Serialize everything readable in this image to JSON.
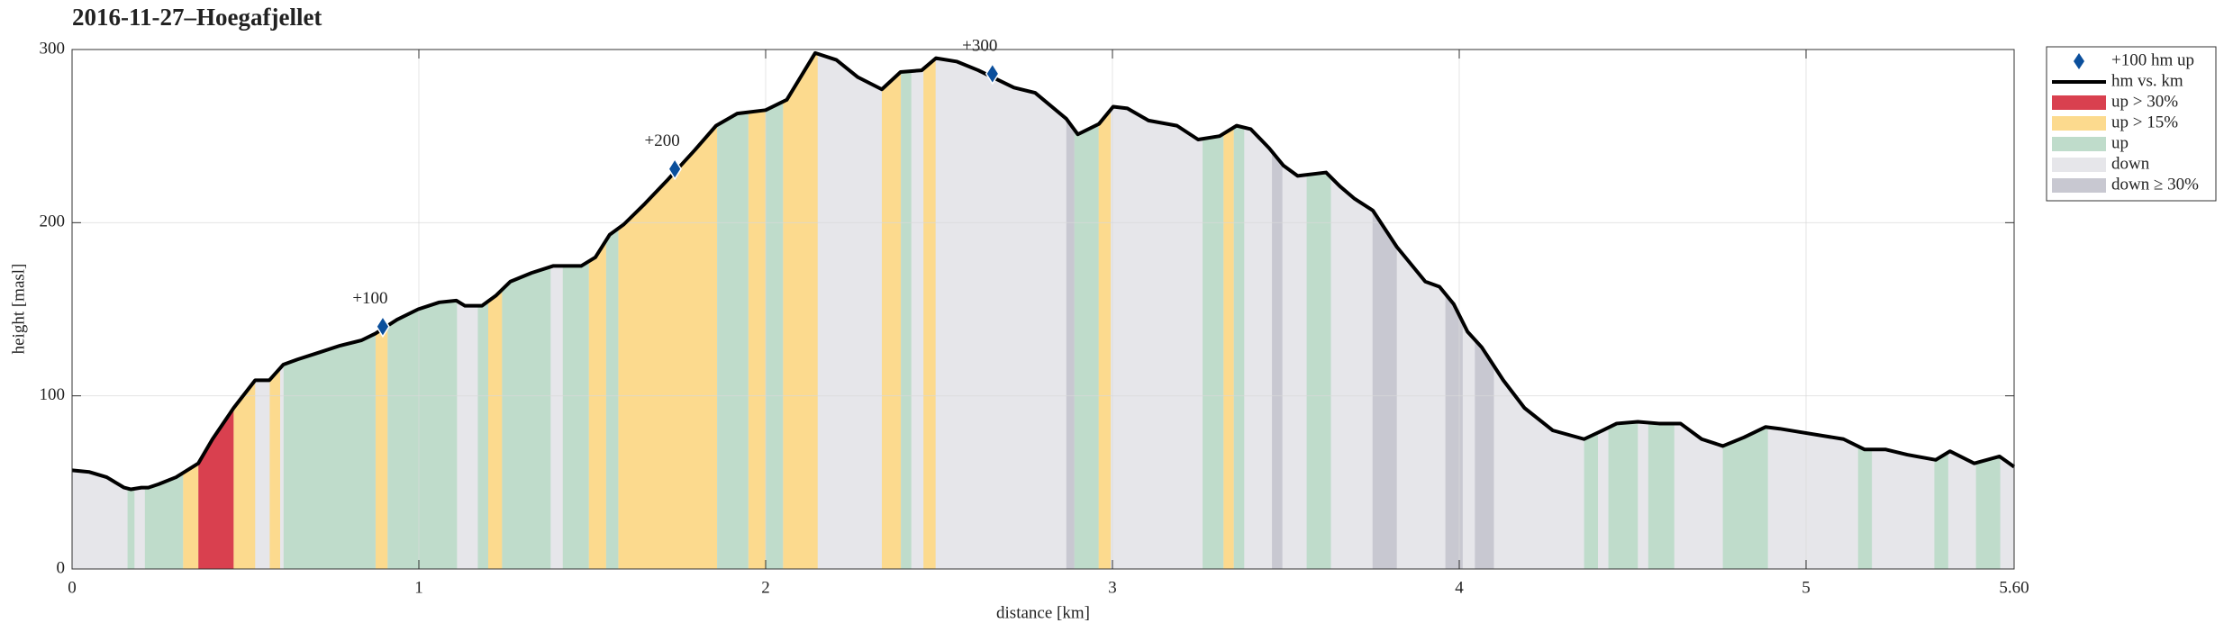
{
  "chart_data": {
    "type": "line",
    "title": "2016-11-27–Hoegafjellet",
    "xlabel": "distance [km]",
    "ylabel": "height [masl]",
    "xlim": [
      0,
      5.6
    ],
    "ylim": [
      0,
      300
    ],
    "xticks": [
      0,
      1,
      2,
      3,
      4,
      5,
      {
        "value": 5.6,
        "label": "5.60"
      }
    ],
    "yticks": [
      0,
      100,
      200,
      300
    ],
    "grid": true,
    "legend": "right",
    "series": [
      {
        "name": "hm vs. km",
        "color": "#000000",
        "x": [
          0,
          0.05,
          0.1,
          0.15,
          0.17,
          0.2,
          0.22,
          0.25,
          0.3,
          0.364,
          0.405,
          0.466,
          0.528,
          0.569,
          0.609,
          0.65,
          0.712,
          0.773,
          0.834,
          0.875,
          0.937,
          0.998,
          1.059,
          1.108,
          1.133,
          1.182,
          1.223,
          1.264,
          1.325,
          1.387,
          1.427,
          1.468,
          1.509,
          1.55,
          1.591,
          1.652,
          1.714,
          1.796,
          1.857,
          1.918,
          2.0,
          2.061,
          2.143,
          2.204,
          2.266,
          2.335,
          2.389,
          2.45,
          2.491,
          2.552,
          2.613,
          2.716,
          2.777,
          2.867,
          2.9,
          2.961,
          3.002,
          3.043,
          3.104,
          3.186,
          3.247,
          3.309,
          3.358,
          3.399,
          3.452,
          3.493,
          3.534,
          3.616,
          3.656,
          3.697,
          3.751,
          3.82,
          3.902,
          3.943,
          3.984,
          4.024,
          4.065,
          4.127,
          4.188,
          4.27,
          4.36,
          4.413,
          4.454,
          4.515,
          4.576,
          4.638,
          4.699,
          4.76,
          4.821,
          4.883,
          4.924,
          4.985,
          5.108,
          5.169,
          5.23,
          5.292,
          5.374,
          5.415,
          5.485,
          5.558,
          5.6
        ],
        "values": [
          57,
          56,
          53,
          47,
          46,
          47,
          47,
          49,
          53,
          61,
          75,
          93,
          109,
          109,
          118,
          121,
          125,
          129,
          132,
          136,
          144,
          150,
          154,
          155,
          152,
          152,
          158,
          166,
          171,
          175,
          175,
          175,
          180,
          193,
          199,
          211,
          224,
          242,
          256,
          263,
          265,
          271,
          298,
          294,
          284,
          277,
          287,
          288,
          295,
          293,
          288,
          278,
          275,
          260,
          251,
          257,
          267,
          266,
          259,
          256,
          248,
          250,
          256,
          254,
          243,
          233,
          227,
          229,
          221,
          214,
          207,
          186,
          166,
          163,
          153,
          137,
          128,
          109,
          93,
          80,
          75,
          80,
          84,
          85,
          84,
          84,
          75,
          71,
          76,
          82,
          81,
          79,
          75,
          69,
          69,
          66,
          63,
          68,
          61,
          65,
          59
        ]
      }
    ],
    "markers": {
      "name": "+100 hm up",
      "color": "#0b4f9c",
      "x": [
        0.896,
        1.738,
        2.654
      ],
      "values": [
        140,
        231,
        286
      ],
      "labels": [
        "+100",
        "+200",
        "+300"
      ]
    },
    "classes": [
      {
        "name": "up > 30%",
        "color": "#d9404f",
        "ranges": [
          [
            0.364,
            0.466
          ]
        ]
      },
      {
        "name": "up > 15%",
        "color": "#fcda8e",
        "ranges": [
          [
            0.32,
            0.364
          ],
          [
            0.466,
            0.528
          ],
          [
            0.57,
            0.6
          ],
          [
            0.875,
            0.91
          ],
          [
            1.2,
            1.24
          ],
          [
            1.49,
            1.54
          ],
          [
            1.575,
            1.86
          ],
          [
            1.95,
            2.0
          ],
          [
            2.05,
            2.15
          ],
          [
            2.335,
            2.39
          ],
          [
            2.455,
            2.49
          ],
          [
            2.96,
            2.995
          ],
          [
            3.32,
            3.35
          ]
        ]
      },
      {
        "name": "up",
        "color": "#bfdccb",
        "ranges": [
          [
            0.16,
            0.18
          ],
          [
            0.21,
            0.32
          ],
          [
            0.61,
            0.875
          ],
          [
            0.91,
            1.11
          ],
          [
            1.17,
            1.2
          ],
          [
            1.24,
            1.38
          ],
          [
            1.415,
            1.49
          ],
          [
            1.54,
            1.575
          ],
          [
            1.86,
            1.95
          ],
          [
            2.0,
            2.05
          ],
          [
            2.39,
            2.42
          ],
          [
            2.89,
            2.96
          ],
          [
            3.26,
            3.32
          ],
          [
            3.35,
            3.38
          ],
          [
            3.56,
            3.63
          ],
          [
            4.36,
            4.4
          ],
          [
            4.43,
            4.515
          ],
          [
            4.545,
            4.62
          ],
          [
            4.76,
            4.89
          ],
          [
            5.15,
            5.19
          ],
          [
            5.37,
            5.41
          ],
          [
            5.49,
            5.56
          ]
        ]
      },
      {
        "name": "down",
        "color": "#e6e6ea"
      },
      {
        "name": "down ≥ 30%",
        "color": "#c8c8d1",
        "ranges": [
          [
            2.867,
            2.89
          ],
          [
            3.46,
            3.49
          ],
          [
            3.75,
            3.82
          ],
          [
            3.96,
            4.01
          ],
          [
            4.045,
            4.1
          ]
        ]
      }
    ]
  }
}
